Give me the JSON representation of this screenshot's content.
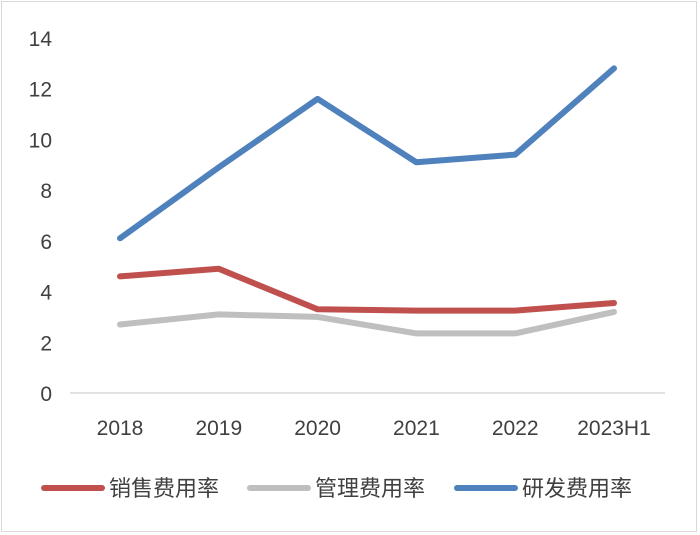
{
  "chart_data": {
    "type": "line",
    "title": "",
    "xlabel": "",
    "ylabel": "",
    "categories": [
      "2018",
      "2019",
      "2020",
      "2021",
      "2022",
      "2023H1"
    ],
    "ylim": [
      0,
      14
    ],
    "yticks": [
      0,
      2,
      4,
      6,
      8,
      10,
      12,
      14
    ],
    "grid": false,
    "legend_position": "bottom",
    "series": [
      {
        "name": "销售费用率",
        "color": "#c0504d",
        "values": [
          4.6,
          4.9,
          3.3,
          3.25,
          3.25,
          3.55
        ]
      },
      {
        "name": "管理费用率",
        "color": "#bfbfbf",
        "values": [
          2.7,
          3.1,
          3.0,
          2.35,
          2.35,
          3.2
        ]
      },
      {
        "name": "研发费用率",
        "color": "#4f81bd",
        "values": [
          6.1,
          8.9,
          11.6,
          9.1,
          9.4,
          12.8
        ]
      }
    ]
  }
}
